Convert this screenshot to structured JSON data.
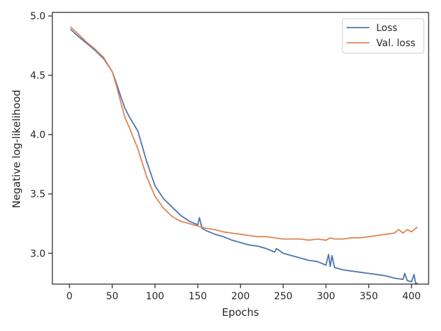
{
  "chart_data": {
    "type": "line",
    "title": "",
    "xlabel": "Epochs",
    "ylabel": "Negative log-likelihood",
    "xlim": [
      -20,
      420
    ],
    "ylim": [
      2.74,
      5.03
    ],
    "xticks": [
      0,
      50,
      100,
      150,
      200,
      250,
      300,
      350,
      400
    ],
    "xtick_labels": [
      "0",
      "50",
      "100",
      "150",
      "200",
      "250",
      "300",
      "350",
      "400"
    ],
    "yticks": [
      3.0,
      3.5,
      4.0,
      4.5,
      5.0
    ],
    "ytick_labels": [
      "3.0",
      "3.5",
      "4.0",
      "4.5",
      "5.0"
    ],
    "grid": false,
    "legend_position": "top-right",
    "series": [
      {
        "name": "Loss",
        "color": "#4c72b0",
        "x": [
          1,
          10,
          20,
          30,
          40,
          50,
          55,
          60,
          65,
          70,
          80,
          90,
          100,
          110,
          120,
          130,
          140,
          150,
          152,
          155,
          160,
          170,
          180,
          190,
          200,
          210,
          220,
          230,
          240,
          242,
          250,
          260,
          270,
          280,
          290,
          300,
          303,
          305,
          307,
          310,
          320,
          330,
          340,
          350,
          360,
          370,
          380,
          390,
          392,
          395,
          400,
          403,
          405,
          407
        ],
        "y": [
          4.89,
          4.83,
          4.77,
          4.71,
          4.64,
          4.53,
          4.43,
          4.32,
          4.22,
          4.15,
          4.03,
          3.78,
          3.57,
          3.46,
          3.39,
          3.32,
          3.27,
          3.24,
          3.3,
          3.21,
          3.19,
          3.16,
          3.14,
          3.11,
          3.09,
          3.07,
          3.06,
          3.04,
          3.01,
          3.04,
          3.0,
          2.98,
          2.96,
          2.94,
          2.93,
          2.9,
          2.99,
          2.89,
          2.98,
          2.88,
          2.86,
          2.85,
          2.84,
          2.83,
          2.82,
          2.81,
          2.79,
          2.78,
          2.83,
          2.77,
          2.76,
          2.82,
          2.74,
          2.75
        ]
      },
      {
        "name": "Val. loss",
        "color": "#dd8452",
        "x": [
          1,
          10,
          20,
          30,
          40,
          50,
          55,
          60,
          65,
          70,
          80,
          90,
          100,
          110,
          120,
          130,
          140,
          150,
          160,
          170,
          180,
          190,
          200,
          210,
          220,
          230,
          240,
          250,
          260,
          270,
          280,
          290,
          300,
          305,
          310,
          320,
          330,
          340,
          350,
          360,
          370,
          380,
          385,
          390,
          395,
          400,
          405,
          407
        ],
        "y": [
          4.91,
          4.85,
          4.78,
          4.72,
          4.65,
          4.53,
          4.41,
          4.27,
          4.14,
          4.06,
          3.88,
          3.65,
          3.48,
          3.38,
          3.31,
          3.27,
          3.25,
          3.23,
          3.21,
          3.2,
          3.18,
          3.17,
          3.16,
          3.15,
          3.14,
          3.14,
          3.13,
          3.12,
          3.12,
          3.12,
          3.11,
          3.12,
          3.11,
          3.13,
          3.12,
          3.12,
          3.13,
          3.13,
          3.14,
          3.15,
          3.16,
          3.17,
          3.2,
          3.17,
          3.2,
          3.18,
          3.21,
          3.22
        ]
      }
    ]
  }
}
